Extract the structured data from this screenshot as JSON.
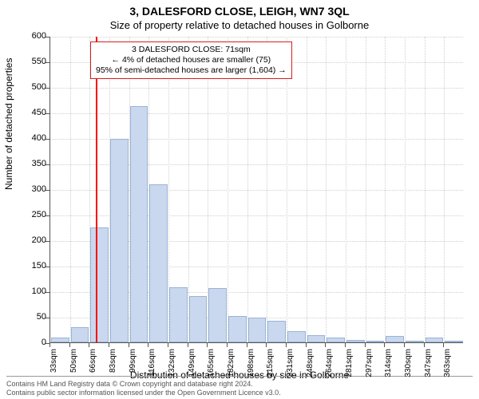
{
  "title_line1": "3, DALESFORD CLOSE, LEIGH, WN7 3QL",
  "title_line2": "Size of property relative to detached houses in Golborne",
  "ylabel": "Number of detached properties",
  "xlabel": "Distribution of detached houses by size in Golborne",
  "chart": {
    "type": "histogram",
    "ylim": [
      0,
      600
    ],
    "ytick_step": 50,
    "x_bin_width_sqm": 16.5,
    "x_start_sqm": 33,
    "bar_fill": "#c9d8ee",
    "bar_border": "#9ab3d6",
    "grid_color": "#cfcfcf",
    "axis_color": "#555555",
    "background": "#ffffff",
    "marker_color": "#ff0000",
    "marker_x_sqm": 71,
    "values": [
      10,
      30,
      225,
      398,
      462,
      310,
      108,
      90,
      106,
      52,
      48,
      42,
      22,
      14,
      10,
      4,
      2,
      12,
      2,
      9,
      2
    ],
    "x_tick_labels": [
      "33sqm",
      "50sqm",
      "66sqm",
      "83sqm",
      "99sqm",
      "116sqm",
      "132sqm",
      "149sqm",
      "165sqm",
      "182sqm",
      "198sqm",
      "215sqm",
      "231sqm",
      "248sqm",
      "264sqm",
      "281sqm",
      "297sqm",
      "314sqm",
      "330sqm",
      "347sqm",
      "363sqm"
    ]
  },
  "callout": {
    "line1": "3 DALESFORD CLOSE: 71sqm",
    "line2": "← 4% of detached houses are smaller (75)",
    "line3": "95% of semi-detached houses are larger (1,604) →",
    "border_color": "#d42020",
    "fontsize": 10.5
  },
  "footer": {
    "line1": "Contains HM Land Registry data © Crown copyright and database right 2024.",
    "line2": "Contains public sector information licensed under the Open Government Licence v3.0."
  },
  "fonts": {
    "title": 14,
    "subtitle": 13,
    "axis_label": 12,
    "tick": 11,
    "xtick": 10,
    "footer": 9
  }
}
